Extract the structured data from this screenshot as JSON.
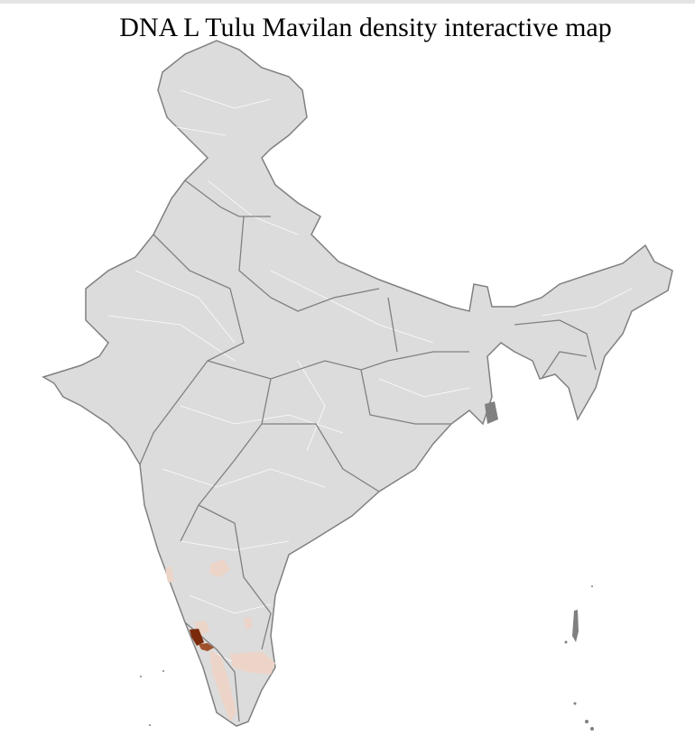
{
  "title": "DNA L Tulu Mavilan density interactive map",
  "colors": {
    "land": "#dcdcdc",
    "state_border": "#808080",
    "district_border": "#ffffff",
    "low_density": "#ecd5c8",
    "medium_density": "#a0522d",
    "high_density": "#7a2a0a"
  }
}
